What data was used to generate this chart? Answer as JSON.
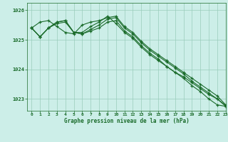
{
  "title": "Graphe pression niveau de la mer (hPa)",
  "xlabel": "Graphe pression niveau de la mer (hPa)",
  "xlim": [
    -0.5,
    23
  ],
  "ylim": [
    1022.6,
    1026.25
  ],
  "yticks": [
    1023,
    1024,
    1025,
    1026
  ],
  "xticks": [
    0,
    1,
    2,
    3,
    4,
    5,
    6,
    7,
    8,
    9,
    10,
    11,
    12,
    13,
    14,
    15,
    16,
    17,
    18,
    19,
    20,
    21,
    22,
    23
  ],
  "background_color": "#cceee8",
  "grid_color": "#99ccbb",
  "line_color": "#1a6b2a",
  "series": [
    [
      1025.4,
      1025.1,
      1025.4,
      1025.55,
      1025.6,
      1025.25,
      1025.2,
      1025.3,
      1025.4,
      1025.6,
      1025.65,
      1025.3,
      1025.1,
      1024.8,
      1024.55,
      1024.35,
      1024.1,
      1023.9,
      1023.75,
      1023.55,
      1023.35,
      1023.15,
      1023.0,
      1022.75
    ],
    [
      1025.4,
      1025.6,
      1025.65,
      1025.45,
      1025.25,
      1025.2,
      1025.5,
      1025.6,
      1025.65,
      1025.75,
      1025.8,
      1025.45,
      1025.25,
      1024.95,
      1024.7,
      1024.5,
      1024.3,
      1024.1,
      1023.9,
      1023.7,
      1023.5,
      1023.3,
      1023.1,
      1022.8
    ],
    [
      1025.4,
      1025.1,
      1025.4,
      1025.6,
      1025.65,
      1025.25,
      1025.2,
      1025.35,
      1025.5,
      1025.7,
      1025.75,
      1025.4,
      1025.2,
      1024.9,
      1024.65,
      1024.45,
      1024.25,
      1024.05,
      1023.85,
      1023.6,
      1023.4,
      1023.2,
      1023.0,
      1022.78
    ],
    [
      1025.4,
      1025.1,
      1025.4,
      1025.6,
      1025.65,
      1025.25,
      1025.25,
      1025.45,
      1025.6,
      1025.8,
      1025.55,
      1025.25,
      1025.05,
      1024.75,
      1024.5,
      1024.3,
      1024.1,
      1023.9,
      1023.7,
      1023.45,
      1023.25,
      1023.0,
      1022.8,
      1022.75
    ]
  ],
  "marker": "+",
  "markersize": 3,
  "linewidth": 0.8
}
